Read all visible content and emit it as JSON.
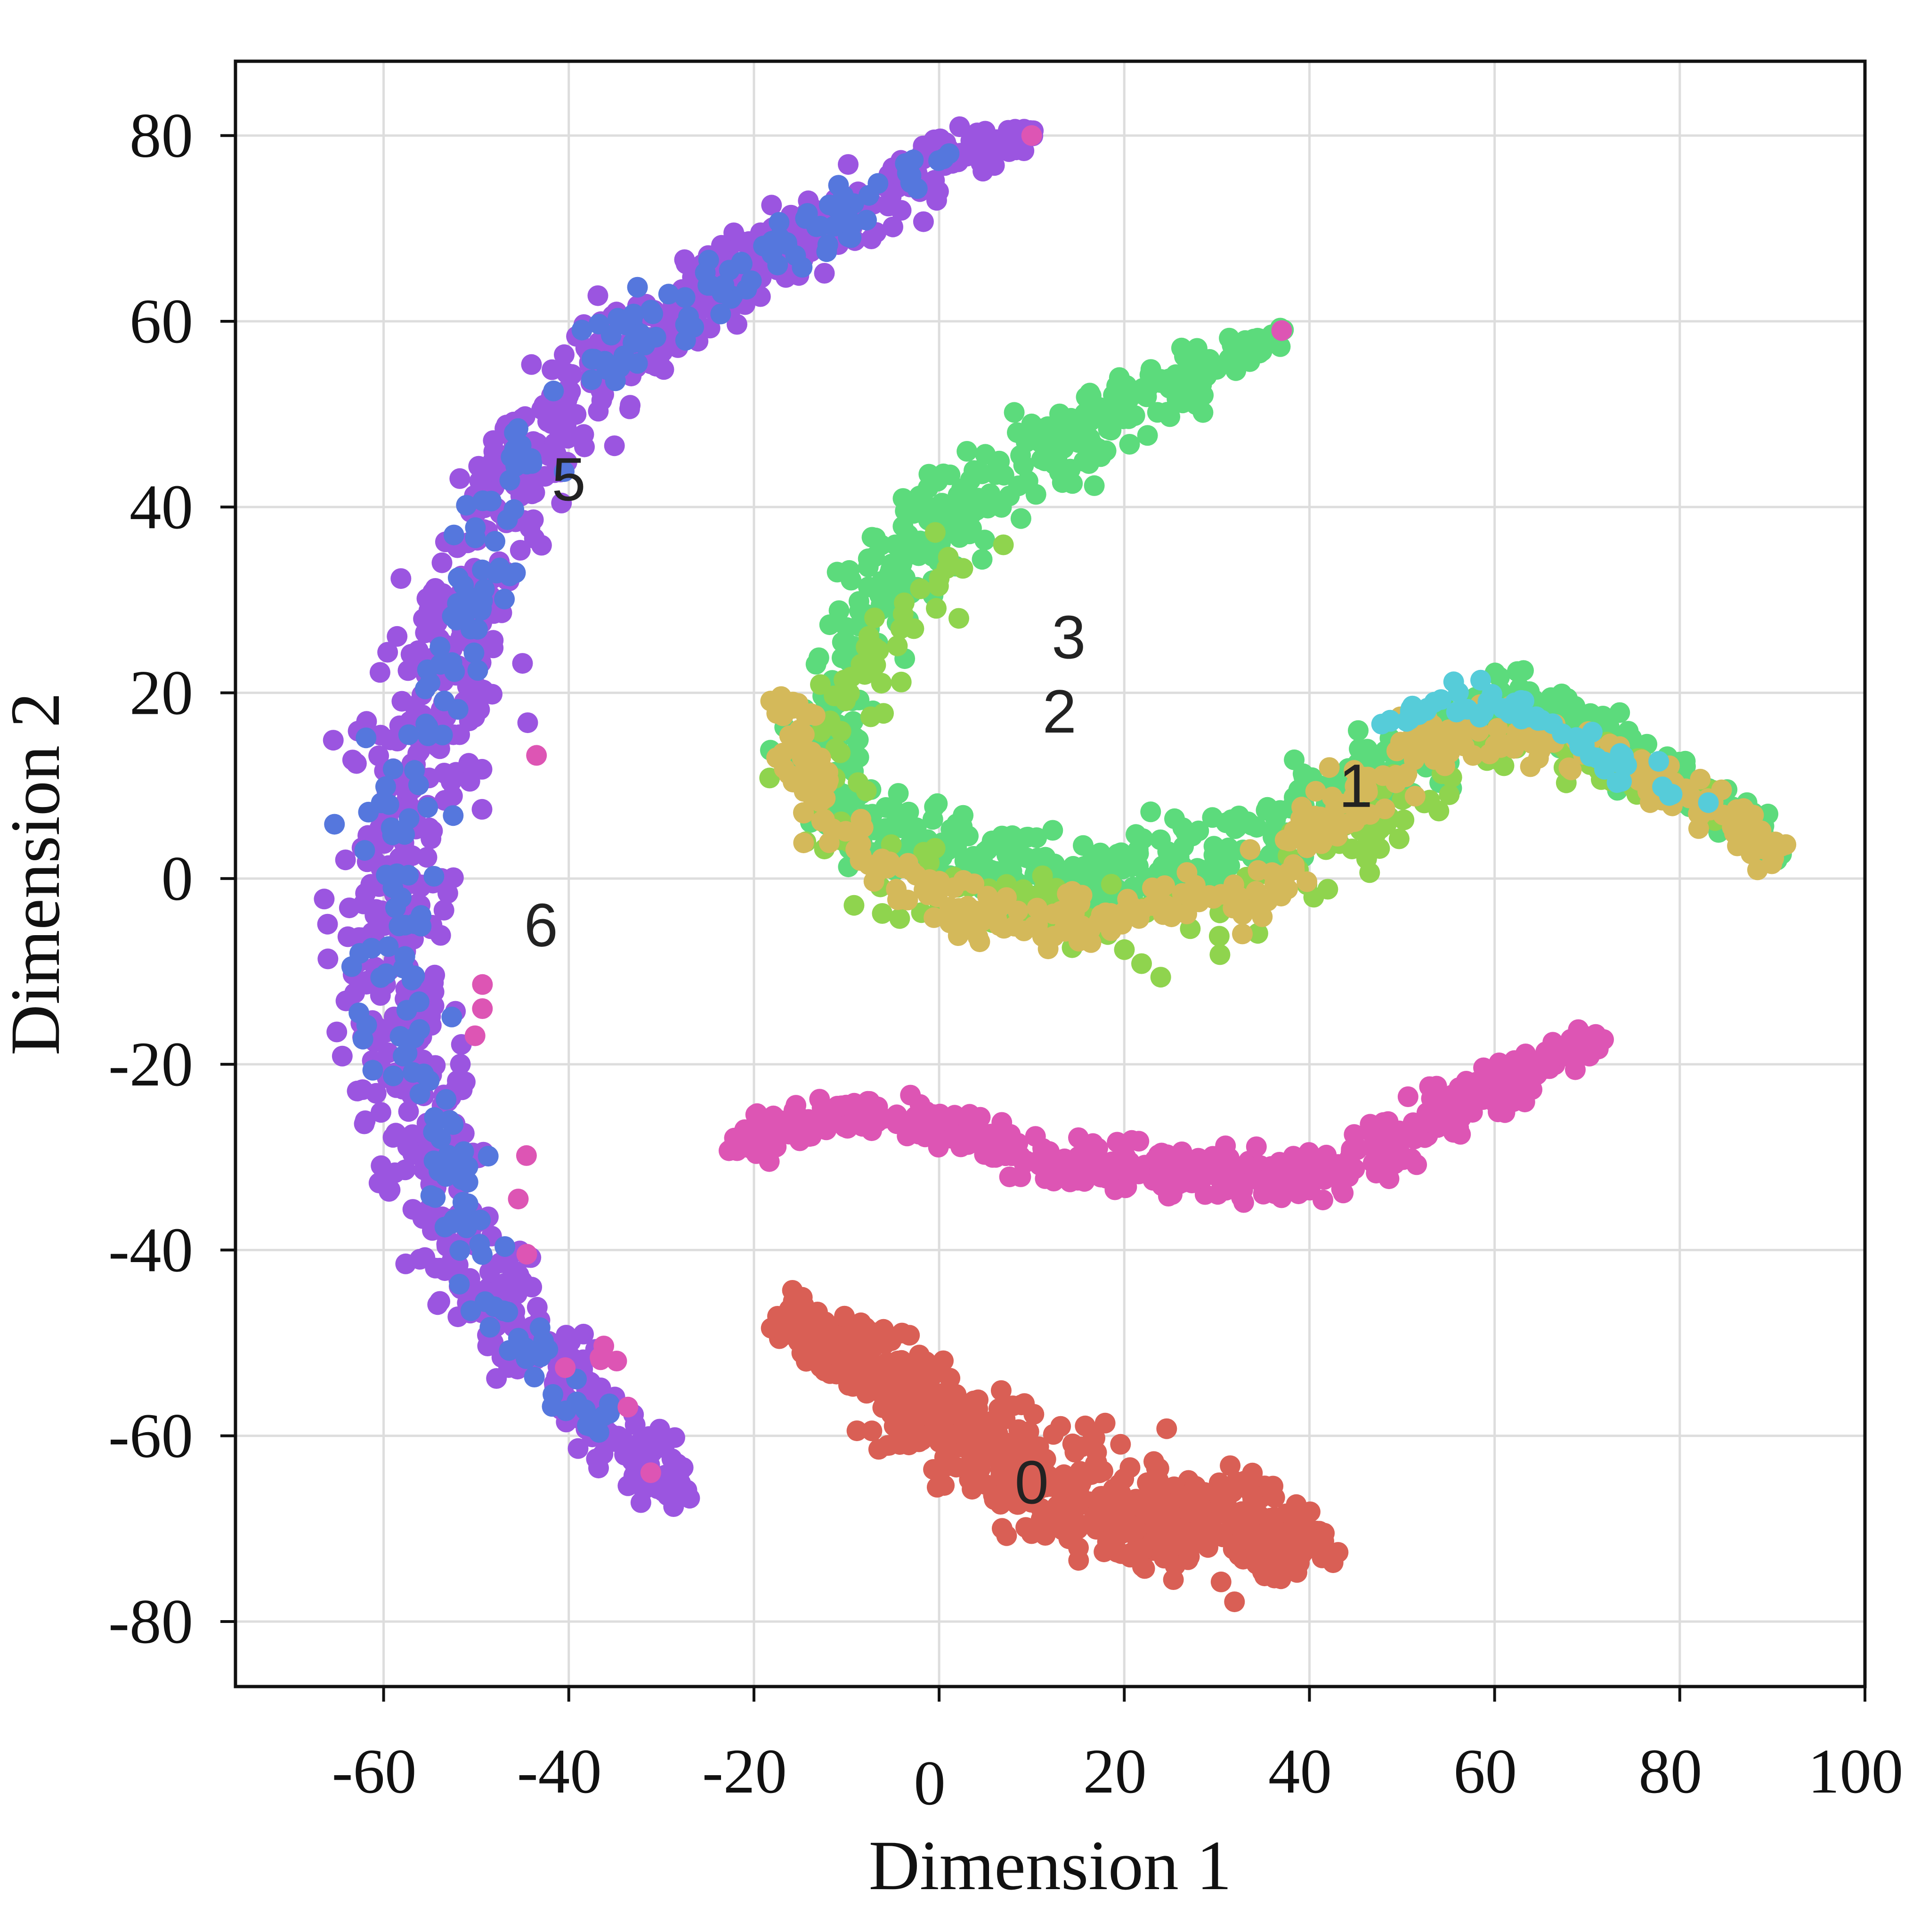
{
  "chart_data": {
    "type": "scatter",
    "title": "",
    "xlabel": "Dimension 1",
    "ylabel": "Dimension 2",
    "xlim": [
      -76,
      100
    ],
    "ylim": [
      -87,
      88
    ],
    "xticks": [
      -60,
      -40,
      -20,
      0,
      20,
      40,
      60,
      80,
      100
    ],
    "yticks": [
      80,
      60,
      40,
      20,
      0,
      -20,
      -40,
      -60,
      -80
    ],
    "grid": true,
    "legend": "none",
    "point_size_note": "dense point clouds; ~3900 points across 7 clusters (approximate shapes)",
    "colors": {
      "cluster_0": "#d95f55",
      "cluster_1": "#d4b95a",
      "cluster_2": "#8fd44e",
      "cluster_3": "#5cdb7c",
      "cluster_4": "#56ccd9",
      "cluster_5": "#5577dd",
      "cluster_6": "#9b55e0",
      "cluster_magenta": "#dd55b4"
    },
    "cluster_labels": [
      {
        "text": "0",
        "x": 10,
        "y": -65
      },
      {
        "text": "1",
        "x": 45,
        "y": 10
      },
      {
        "text": "2",
        "x": 13,
        "y": 18
      },
      {
        "text": "3",
        "x": 14,
        "y": 26
      },
      {
        "text": "5",
        "x": -40,
        "y": 43
      },
      {
        "text": "6",
        "x": -43,
        "y": -5
      }
    ],
    "series": [
      {
        "key": "cluster_0",
        "color": "#d95f55",
        "count": 650,
        "path": [
          [
            -17,
            -47
          ],
          [
            -8,
            -52
          ],
          [
            0,
            -58
          ],
          [
            8,
            -63
          ],
          [
            15,
            -67
          ],
          [
            24,
            -69
          ],
          [
            34,
            -70
          ],
          [
            42,
            -72
          ]
        ],
        "width": [
          3,
          4.5,
          5,
          6,
          6,
          6,
          5,
          3
        ]
      },
      {
        "key": "cluster_magenta",
        "color": "#dd55b4",
        "count": 500,
        "path": [
          [
            -22,
            -29
          ],
          [
            -10,
            -25
          ],
          [
            0,
            -27
          ],
          [
            10,
            -30
          ],
          [
            20,
            -31
          ],
          [
            30,
            -32
          ],
          [
            40,
            -33
          ],
          [
            48,
            -29
          ],
          [
            55,
            -25
          ],
          [
            63,
            -21
          ],
          [
            71,
            -17
          ]
        ],
        "width": [
          2,
          2.5,
          2.5,
          2.5,
          2.5,
          2.5,
          2.5,
          3,
          3,
          2.5,
          1.5
        ]
      },
      {
        "key": "cluster_3",
        "color": "#5cdb7c",
        "count": 900,
        "path": [
          [
            37,
            59
          ],
          [
            28,
            54
          ],
          [
            18,
            50
          ],
          [
            10,
            45
          ],
          [
            2,
            40
          ],
          [
            -5,
            33
          ],
          [
            -8,
            25
          ],
          [
            -12,
            17
          ],
          [
            -12,
            9
          ],
          [
            -6,
            4
          ],
          [
            2,
            2
          ],
          [
            10,
            0
          ],
          [
            20,
            0
          ],
          [
            30,
            3
          ],
          [
            40,
            8
          ],
          [
            48,
            12
          ],
          [
            56,
            17
          ],
          [
            64,
            19
          ],
          [
            72,
            15
          ],
          [
            80,
            10
          ],
          [
            88,
            5
          ],
          [
            91,
            2
          ]
        ],
        "width": [
          1,
          3,
          4,
          4.5,
          4.5,
          4,
          4,
          4,
          4,
          4,
          4,
          4,
          4,
          4,
          4,
          4,
          4,
          3,
          3,
          2.5,
          2,
          1.5
        ]
      },
      {
        "key": "cluster_2",
        "color": "#8fd44e",
        "count": 220,
        "path": [
          [
            6,
            38
          ],
          [
            -2,
            30
          ],
          [
            -10,
            20
          ],
          [
            -14,
            10
          ],
          [
            -8,
            2
          ],
          [
            4,
            -2
          ],
          [
            15,
            -4
          ],
          [
            25,
            -5
          ],
          [
            38,
            0
          ],
          [
            48,
            6
          ],
          [
            60,
            14
          ],
          [
            72,
            12
          ],
          [
            84,
            8
          ]
        ],
        "width": [
          3,
          4,
          4,
          4,
          4,
          4,
          4,
          4,
          4,
          4,
          3,
          3,
          2
        ]
      },
      {
        "key": "cluster_1",
        "color": "#d4b95a",
        "count": 350,
        "path": [
          [
            -17,
            20
          ],
          [
            -12,
            6
          ],
          [
            -5,
            0
          ],
          [
            5,
            -5
          ],
          [
            15,
            -5
          ],
          [
            25,
            -2
          ],
          [
            35,
            -2
          ],
          [
            42,
            6
          ],
          [
            48,
            12
          ],
          [
            56,
            16
          ],
          [
            66,
            15
          ],
          [
            76,
            11
          ],
          [
            84,
            8
          ],
          [
            91,
            2
          ]
        ],
        "width": [
          2,
          3,
          3,
          3,
          3,
          3,
          3,
          3,
          3,
          3,
          3,
          3,
          2.5,
          1.5
        ]
      },
      {
        "key": "cluster_4",
        "color": "#56ccd9",
        "count": 55,
        "path": [
          [
            48,
            18
          ],
          [
            58,
            19
          ],
          [
            64,
            18
          ],
          [
            70,
            14
          ],
          [
            78,
            10
          ],
          [
            84,
            9
          ]
        ],
        "width": [
          1.5,
          2,
          2,
          2,
          2,
          1.5
        ]
      },
      {
        "key": "cluster_6",
        "color": "#9b55e0",
        "count": 950,
        "path": [
          [
            10,
            80
          ],
          [
            0,
            78
          ],
          [
            -8,
            72
          ],
          [
            -18,
            68
          ],
          [
            -28,
            62
          ],
          [
            -38,
            54
          ],
          [
            -46,
            44
          ],
          [
            -50,
            34
          ],
          [
            -53,
            22
          ],
          [
            -57,
            10
          ],
          [
            -59,
            -2
          ],
          [
            -59,
            -14
          ],
          [
            -56,
            -26
          ],
          [
            -52,
            -38
          ],
          [
            -46,
            -48
          ],
          [
            -40,
            -55
          ],
          [
            -33,
            -62
          ],
          [
            -27,
            -66
          ]
        ],
        "width": [
          1.5,
          2.5,
          3.5,
          4,
          4.5,
          5,
          5,
          5.5,
          6,
          7,
          6.5,
          6,
          5.5,
          5,
          5,
          4.5,
          4,
          3
        ]
      },
      {
        "key": "cluster_5",
        "color": "#5577dd",
        "count": 260,
        "path": [
          [
            2,
            78
          ],
          [
            -6,
            74
          ],
          [
            -16,
            68
          ],
          [
            -28,
            62
          ],
          [
            -38,
            54
          ],
          [
            -46,
            44
          ],
          [
            -50,
            34
          ],
          [
            -53,
            22
          ],
          [
            -57,
            10
          ],
          [
            -59,
            -2
          ],
          [
            -60,
            -12
          ],
          [
            -56,
            -26
          ],
          [
            -50,
            -40
          ],
          [
            -44,
            -52
          ],
          [
            -36,
            -58
          ]
        ],
        "width": [
          2,
          3,
          3.5,
          4,
          4,
          4,
          4,
          4.5,
          5,
          5,
          5,
          4.5,
          4,
          3.5,
          3
        ]
      },
      {
        "key": "cluster_magenta_stray",
        "color": "#dd55b4",
        "count": 14,
        "path": [
          [
            -42,
            18
          ],
          [
            -51,
            -16
          ],
          [
            -43,
            -22
          ],
          [
            -46,
            -39
          ],
          [
            -42,
            -58
          ],
          [
            -38,
            -48
          ],
          [
            -30,
            -65
          ],
          [
            -28,
            -66
          ]
        ],
        "width": [
          1,
          1,
          1,
          1,
          1,
          1,
          1,
          1
        ]
      }
    ],
    "extra_points": [
      {
        "color": "#dd55b4",
        "x": 10,
        "y": 80
      },
      {
        "color": "#dd55b4",
        "x": 37,
        "y": 59
      }
    ]
  }
}
